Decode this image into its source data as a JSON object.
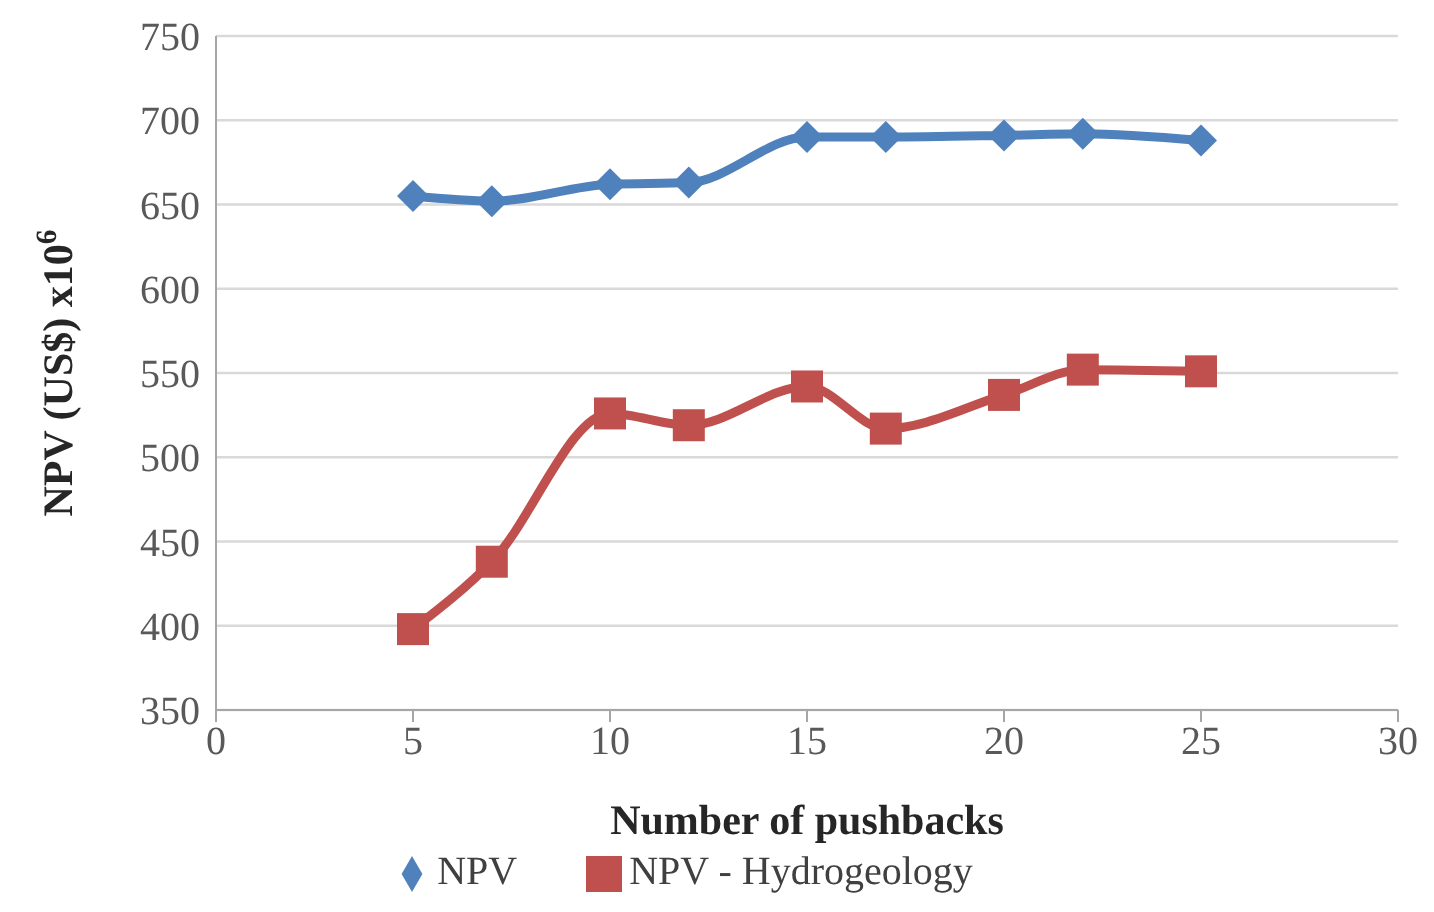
{
  "chart_data": {
    "type": "line",
    "xlabel": "Number of pushbacks",
    "ylabel": "NPV (US$) x10$^{6}$",
    "x": [
      5,
      7,
      10,
      12,
      15,
      17,
      20,
      22,
      25
    ],
    "series": [
      {
        "name": "NPV",
        "color": "#4f81bd",
        "marker": "diamond",
        "values": [
          655,
          652,
          662,
          663,
          690,
          690,
          691,
          692,
          688
        ]
      },
      {
        "name": "NPV - Hydrogeology",
        "color": "#c0504d",
        "marker": "square",
        "values": [
          398,
          438,
          526,
          519,
          542,
          517,
          537,
          552,
          551
        ]
      }
    ],
    "xlim": [
      0,
      30
    ],
    "xticks": [
      0,
      5,
      10,
      15,
      20,
      25,
      30
    ],
    "ylim": [
      350,
      750
    ],
    "yticks": [
      350,
      400,
      450,
      500,
      550,
      600,
      650,
      700,
      750
    ],
    "grid": "y",
    "legend": "bottom",
    "line_style": "solid"
  }
}
